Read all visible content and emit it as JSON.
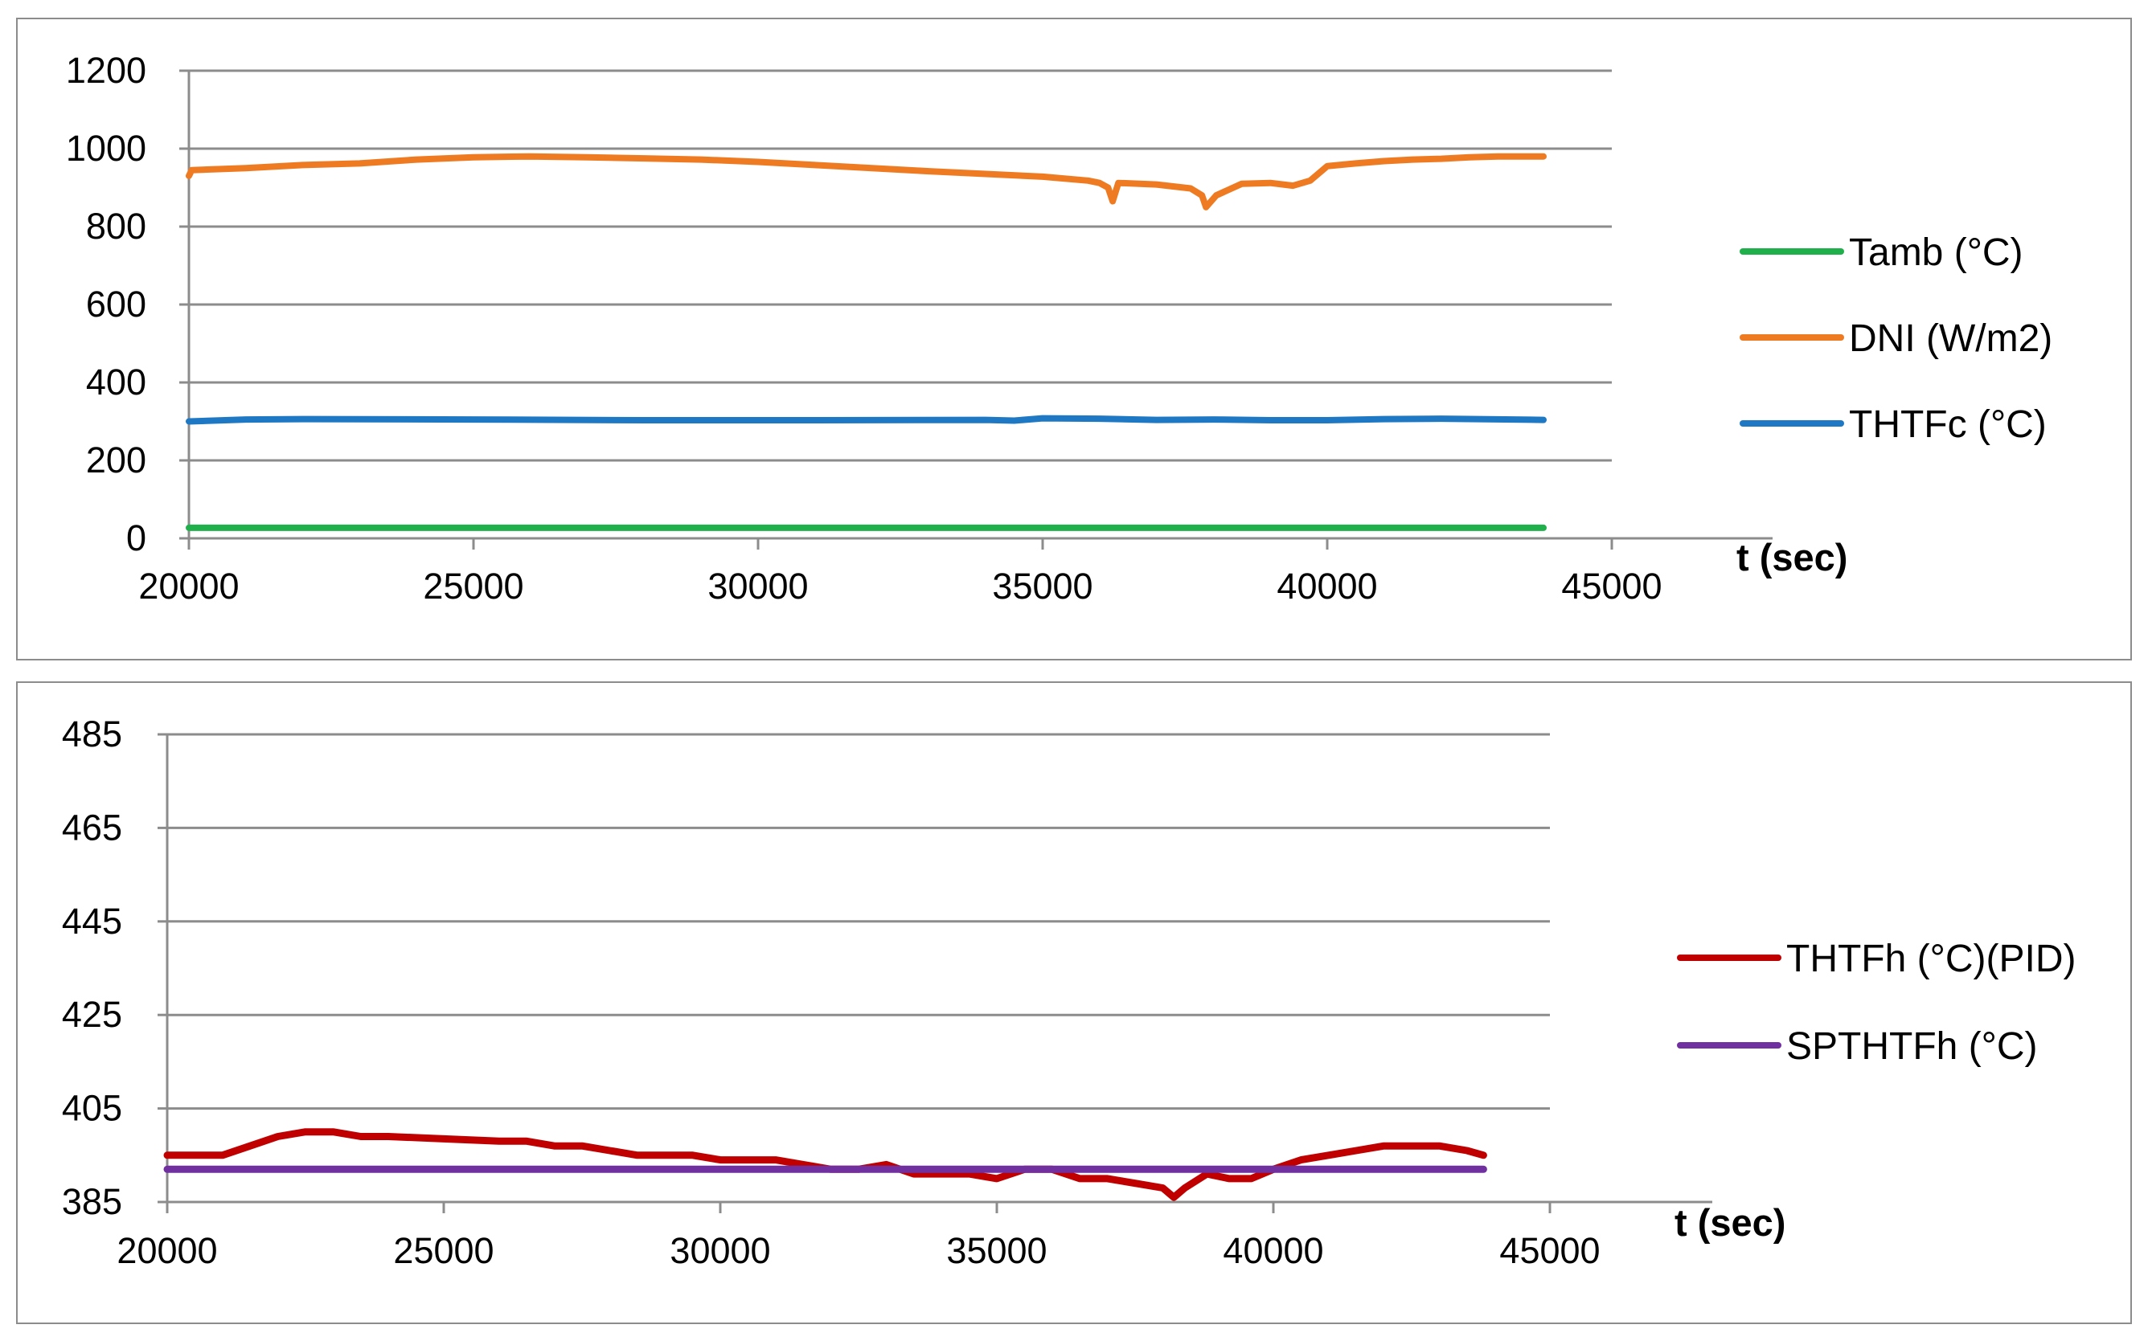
{
  "chart_data": [
    {
      "type": "line",
      "title": "",
      "xlabel": "t (sec)",
      "ylabel": "",
      "xlim": [
        20000,
        45000
      ],
      "ylim": [
        0,
        1200
      ],
      "xticks": [
        20000,
        25000,
        30000,
        35000,
        40000,
        45000
      ],
      "yticks": [
        0,
        200,
        400,
        600,
        800,
        1000,
        1200
      ],
      "grid": "horizontal",
      "legend_position": "right",
      "series": [
        {
          "name": "Tamb (°C)",
          "color": "#1fb04b",
          "points": [
            [
              20000,
              27
            ],
            [
              43800,
              27
            ]
          ]
        },
        {
          "name": "DNI (W/m2)",
          "color": "#ee7b22",
          "points": [
            [
              20000,
              930
            ],
            [
              20050,
              945
            ],
            [
              21000,
              950
            ],
            [
              22000,
              958
            ],
            [
              23000,
              962
            ],
            [
              24000,
              972
            ],
            [
              25000,
              978
            ],
            [
              26000,
              980
            ],
            [
              27000,
              978
            ],
            [
              28000,
              975
            ],
            [
              29000,
              972
            ],
            [
              30000,
              966
            ],
            [
              31000,
              958
            ],
            [
              32000,
              950
            ],
            [
              33000,
              942
            ],
            [
              34000,
              935
            ],
            [
              35000,
              928
            ],
            [
              35800,
              918
            ],
            [
              36000,
              912
            ],
            [
              36150,
              900
            ],
            [
              36230,
              865
            ],
            [
              36330,
              912
            ],
            [
              37000,
              908
            ],
            [
              37600,
              898
            ],
            [
              37800,
              880
            ],
            [
              37870,
              850
            ],
            [
              38050,
              880
            ],
            [
              38500,
              910
            ],
            [
              39000,
              912
            ],
            [
              39400,
              905
            ],
            [
              39700,
              918
            ],
            [
              40000,
              955
            ],
            [
              40500,
              962
            ],
            [
              41000,
              968
            ],
            [
              41500,
              972
            ],
            [
              42000,
              974
            ],
            [
              42500,
              978
            ],
            [
              43000,
              980
            ],
            [
              43800,
              980
            ]
          ]
        },
        {
          "name": "THTFc (°C)",
          "color": "#1f78c4",
          "points": [
            [
              20000,
              300
            ],
            [
              21000,
              305
            ],
            [
              22000,
              306
            ],
            [
              25000,
              305
            ],
            [
              28000,
              303
            ],
            [
              31000,
              303
            ],
            [
              34000,
              304
            ],
            [
              34500,
              302
            ],
            [
              35000,
              308
            ],
            [
              36000,
              307
            ],
            [
              37000,
              304
            ],
            [
              38000,
              305
            ],
            [
              39000,
              303
            ],
            [
              40000,
              303
            ],
            [
              41000,
              306
            ],
            [
              42000,
              307
            ],
            [
              43800,
              304
            ]
          ]
        }
      ]
    },
    {
      "type": "line",
      "title": "",
      "xlabel": "t (sec)",
      "ylabel": "",
      "xlim": [
        20000,
        45000
      ],
      "ylim": [
        385,
        485
      ],
      "xticks": [
        20000,
        25000,
        30000,
        35000,
        40000,
        45000
      ],
      "yticks": [
        385,
        405,
        425,
        445,
        465,
        485
      ],
      "grid": "horizontal",
      "legend_position": "right",
      "series": [
        {
          "name": "THTFh (°C)(PID)",
          "color": "#c00000",
          "points": [
            [
              20000,
              395
            ],
            [
              20500,
              395
            ],
            [
              21000,
              395
            ],
            [
              21500,
              397
            ],
            [
              22000,
              399
            ],
            [
              22500,
              400
            ],
            [
              23000,
              400
            ],
            [
              23500,
              399
            ],
            [
              24000,
              399
            ],
            [
              25000,
              398.5
            ],
            [
              26000,
              398
            ],
            [
              26500,
              398
            ],
            [
              27000,
              397
            ],
            [
              27500,
              397
            ],
            [
              28000,
              396
            ],
            [
              28500,
              395
            ],
            [
              29000,
              395
            ],
            [
              29500,
              395
            ],
            [
              30000,
              394
            ],
            [
              30500,
              394
            ],
            [
              31000,
              394
            ],
            [
              31500,
              393
            ],
            [
              32000,
              392
            ],
            [
              32500,
              392
            ],
            [
              33000,
              393
            ],
            [
              33500,
              391
            ],
            [
              34000,
              391
            ],
            [
              34500,
              391
            ],
            [
              35000,
              390
            ],
            [
              35500,
              392
            ],
            [
              36000,
              392
            ],
            [
              36500,
              390
            ],
            [
              37000,
              390
            ],
            [
              37500,
              389
            ],
            [
              38000,
              388
            ],
            [
              38200,
              386
            ],
            [
              38400,
              388
            ],
            [
              38800,
              391
            ],
            [
              39200,
              390
            ],
            [
              39600,
              390
            ],
            [
              40000,
              392
            ],
            [
              40500,
              394
            ],
            [
              41000,
              395
            ],
            [
              41500,
              396
            ],
            [
              42000,
              397
            ],
            [
              42500,
              397
            ],
            [
              43000,
              397
            ],
            [
              43500,
              396
            ],
            [
              43800,
              395
            ]
          ]
        },
        {
          "name": "SPTHTFh (°C)",
          "color": "#7030a0",
          "points": [
            [
              20000,
              392
            ],
            [
              43800,
              392
            ]
          ]
        }
      ]
    }
  ]
}
